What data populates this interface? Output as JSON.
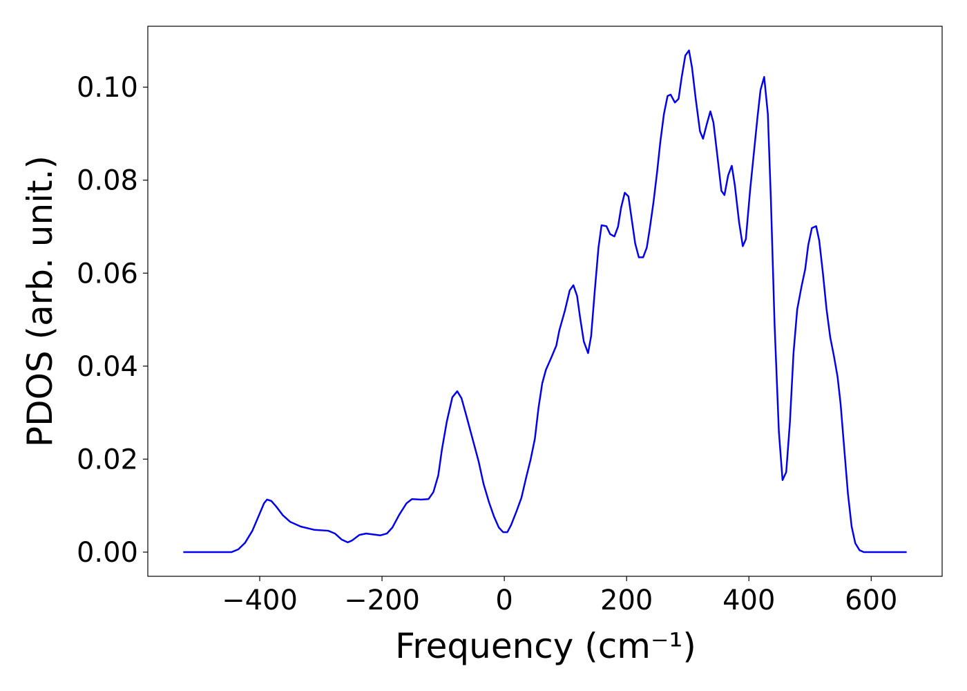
{
  "chart_data": {
    "type": "line",
    "xlabel": "Frequency (cm⁻¹)",
    "ylabel": "PDOS (arb. unit.)",
    "color": "#0000ee",
    "xlim": [
      -583,
      716
    ],
    "ylim": [
      -0.0052,
      0.1131
    ],
    "xticks": [
      {
        "value": -400,
        "label": "−400"
      },
      {
        "value": -200,
        "label": "−200"
      },
      0,
      200,
      400,
      600
    ],
    "yticks": [
      {
        "value": 0,
        "label": "0.00"
      },
      {
        "value": 0.02,
        "label": "0.02"
      },
      {
        "value": 0.04,
        "label": "0.04"
      },
      {
        "value": 0.06,
        "label": "0.06"
      },
      {
        "value": 0.08,
        "label": "0.08"
      },
      {
        "value": 0.1,
        "label": "0.10"
      }
    ],
    "x": [
      -525,
      -446,
      -435,
      -424,
      -412,
      -401,
      -393,
      -388,
      -381,
      -373,
      -362,
      -350,
      -333,
      -311,
      -288,
      -277,
      -266,
      -256,
      -249,
      -237,
      -226,
      -203,
      -192,
      -183,
      -172,
      -160,
      -151,
      -136,
      -124,
      -116,
      -108,
      -102,
      -94,
      -85,
      -77,
      -70,
      -62,
      -51,
      -42,
      -34,
      -25,
      -17,
      -9,
      -2,
      5,
      11,
      20,
      28,
      36,
      43,
      50,
      56,
      62,
      68,
      77,
      85,
      90,
      99,
      107,
      113,
      119,
      124,
      130,
      137,
      142,
      148,
      154,
      159,
      167,
      173,
      180,
      186,
      191,
      197,
      203,
      208,
      214,
      220,
      227,
      233,
      238,
      244,
      250,
      255,
      261,
      267,
      272,
      279,
      285,
      290,
      296,
      302,
      307,
      313,
      320,
      325,
      331,
      337,
      342,
      348,
      355,
      360,
      366,
      372,
      377,
      384,
      390,
      395,
      402,
      408,
      414,
      419,
      425,
      431,
      436,
      442,
      449,
      455,
      461,
      467,
      473,
      479,
      486,
      492,
      497,
      503,
      510,
      515,
      521,
      527,
      533,
      539,
      545,
      550,
      556,
      562,
      568,
      574,
      581,
      588,
      658
    ],
    "values": [
      0,
      0,
      0.0006,
      0.002,
      0.0046,
      0.008,
      0.0105,
      0.0113,
      0.011,
      0.0098,
      0.0079,
      0.0065,
      0.0055,
      0.0048,
      0.0046,
      0.004,
      0.0027,
      0.0021,
      0.0025,
      0.0037,
      0.004,
      0.0036,
      0.004,
      0.0053,
      0.008,
      0.0105,
      0.0114,
      0.0113,
      0.0114,
      0.0129,
      0.0165,
      0.0221,
      0.0281,
      0.0333,
      0.0346,
      0.0331,
      0.0293,
      0.0239,
      0.0195,
      0.0147,
      0.0107,
      0.0077,
      0.0053,
      0.0043,
      0.0043,
      0.0058,
      0.0088,
      0.0117,
      0.0162,
      0.0199,
      0.0244,
      0.0311,
      0.0363,
      0.0392,
      0.0419,
      0.0444,
      0.0477,
      0.0519,
      0.0563,
      0.0574,
      0.0551,
      0.0504,
      0.0453,
      0.0428,
      0.0465,
      0.0563,
      0.0655,
      0.0703,
      0.0701,
      0.0684,
      0.0679,
      0.07,
      0.0741,
      0.0773,
      0.0765,
      0.0719,
      0.0664,
      0.0634,
      0.0634,
      0.0655,
      0.0697,
      0.0753,
      0.0819,
      0.0881,
      0.0942,
      0.0981,
      0.0984,
      0.0967,
      0.0975,
      0.1021,
      0.1068,
      0.1079,
      0.1042,
      0.0975,
      0.0905,
      0.0889,
      0.092,
      0.0948,
      0.0924,
      0.0857,
      0.0777,
      0.0768,
      0.081,
      0.0831,
      0.0789,
      0.0709,
      0.0658,
      0.0673,
      0.0779,
      0.0857,
      0.0935,
      0.0994,
      0.1022,
      0.0942,
      0.0756,
      0.0489,
      0.0259,
      0.0155,
      0.0172,
      0.0278,
      0.0429,
      0.0522,
      0.0571,
      0.0608,
      0.066,
      0.0697,
      0.0701,
      0.067,
      0.06,
      0.0522,
      0.0462,
      0.0422,
      0.0377,
      0.0318,
      0.0221,
      0.0125,
      0.0055,
      0.0019,
      0.0004,
      0,
      0
    ]
  }
}
